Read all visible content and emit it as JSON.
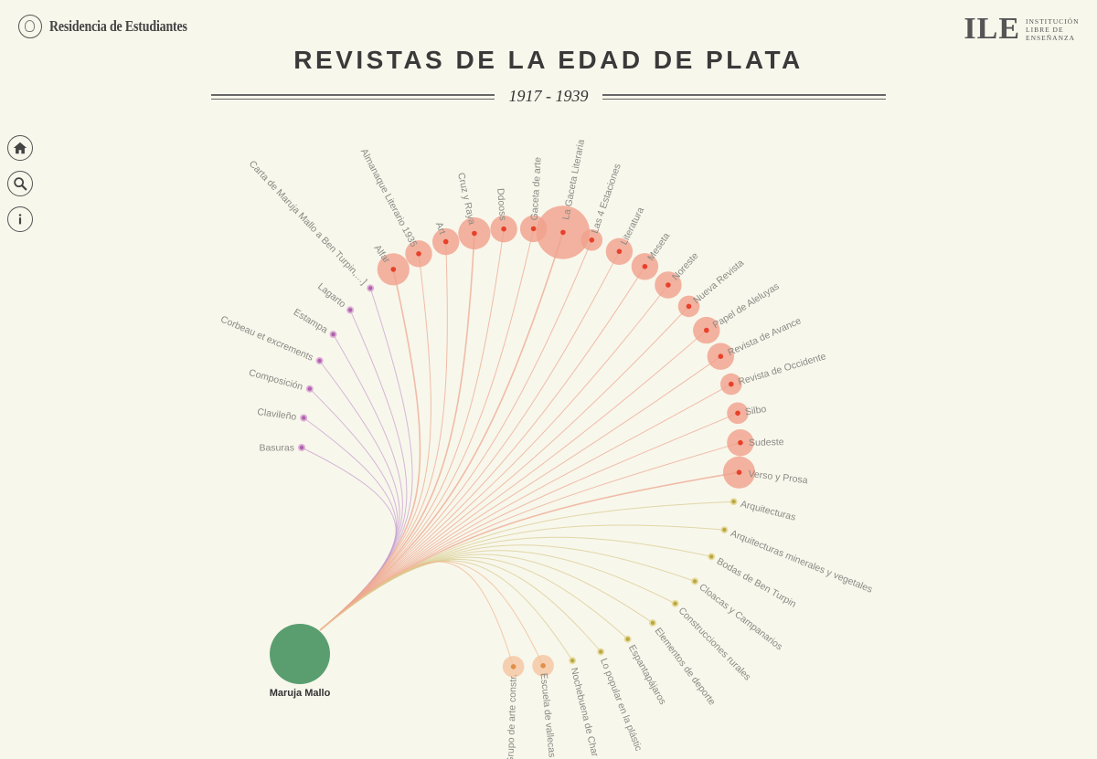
{
  "header": {
    "left_logo": "Residencia de Estudiantes",
    "right_logo_mark": "ILE",
    "right_logo_text": [
      "INSTITUCIÓN",
      "LIBRE DE",
      "ENSEÑANZA"
    ],
    "title": "REVISTAS DE LA EDAD DE PLATA",
    "years": "1917 - 1939"
  },
  "nav": {
    "icons": [
      "home-icon",
      "search-icon",
      "info-icon"
    ]
  },
  "colors": {
    "background": "#f8f7ec",
    "center": "#5a9e6f",
    "revista_fill": "#f0a08c",
    "revista_dot": "#e8402a",
    "purple_fill": "#d8a8d0",
    "purple_dot": "#b060b0",
    "olive_fill": "#e6d89a",
    "olive_dot": "#b8a840",
    "orange_fill": "#f4c4a0",
    "orange_dot": "#e0904a"
  },
  "diagram": {
    "center": {
      "label": "Maruja Mallo"
    },
    "nodes": [
      {
        "label": "Basuras",
        "group": "purple",
        "weight": 1
      },
      {
        "label": "Clavileño",
        "group": "purple",
        "weight": 1
      },
      {
        "label": "Composición",
        "group": "purple",
        "weight": 1
      },
      {
        "label": "Corbeau et excrements",
        "group": "purple",
        "weight": 1
      },
      {
        "label": "Estampa",
        "group": "purple",
        "weight": 1
      },
      {
        "label": "Lagarto",
        "group": "purple",
        "weight": 1
      },
      {
        "label": "Carta de Maruja Mallo a Ben Turpin,…]",
        "group": "purple",
        "weight": 1
      },
      {
        "label": "Alfar",
        "group": "revista",
        "weight": 4
      },
      {
        "label": "Almanaque Literario 1935",
        "group": "revista",
        "weight": 3
      },
      {
        "label": "Art",
        "group": "revista",
        "weight": 3
      },
      {
        "label": "Cruz y Raya",
        "group": "revista",
        "weight": 4
      },
      {
        "label": "Ddooss",
        "group": "revista",
        "weight": 3
      },
      {
        "label": "Gaceta de arte",
        "group": "revista",
        "weight": 3
      },
      {
        "label": "La Gaceta Literaria",
        "group": "revista",
        "weight": 8
      },
      {
        "label": "Las 4 Estaciones",
        "group": "revista",
        "weight": 2
      },
      {
        "label": "Literatura",
        "group": "revista",
        "weight": 3
      },
      {
        "label": "Meseta",
        "group": "revista",
        "weight": 3
      },
      {
        "label": "Noreste",
        "group": "revista",
        "weight": 3
      },
      {
        "label": "Nueva Revista",
        "group": "revista",
        "weight": 2
      },
      {
        "label": "Papel de Aleluyas",
        "group": "revista",
        "weight": 3
      },
      {
        "label": "Revista de Avance",
        "group": "revista",
        "weight": 3
      },
      {
        "label": "Revista de Occidente",
        "group": "revista",
        "weight": 2
      },
      {
        "label": "Silbo",
        "group": "revista",
        "weight": 2
      },
      {
        "label": "Sudeste",
        "group": "revista",
        "weight": 3
      },
      {
        "label": "Verso y Prosa",
        "group": "revista",
        "weight": 4
      },
      {
        "label": "Arquitecturas",
        "group": "olive",
        "weight": 1
      },
      {
        "label": "Arquitecturas minerales y vegetales",
        "group": "olive",
        "weight": 1
      },
      {
        "label": "Bodas de Ben Turpin",
        "group": "olive",
        "weight": 1
      },
      {
        "label": "Cloacas y Campanarios",
        "group": "olive",
        "weight": 1
      },
      {
        "label": "Construcciones rurales",
        "group": "olive",
        "weight": 1
      },
      {
        "label": "Elementos de deporte",
        "group": "olive",
        "weight": 1
      },
      {
        "label": "Espantapájaros",
        "group": "olive",
        "weight": 1
      },
      {
        "label": "Lo popular en la plástic",
        "group": "olive",
        "weight": 1
      },
      {
        "label": "Nochebuena de Char",
        "group": "olive",
        "weight": 1
      },
      {
        "label": "Escuela de vallecas",
        "group": "orange",
        "weight": 2
      },
      {
        "label": "Grupo de arte constr.",
        "group": "orange",
        "weight": 2
      }
    ]
  }
}
